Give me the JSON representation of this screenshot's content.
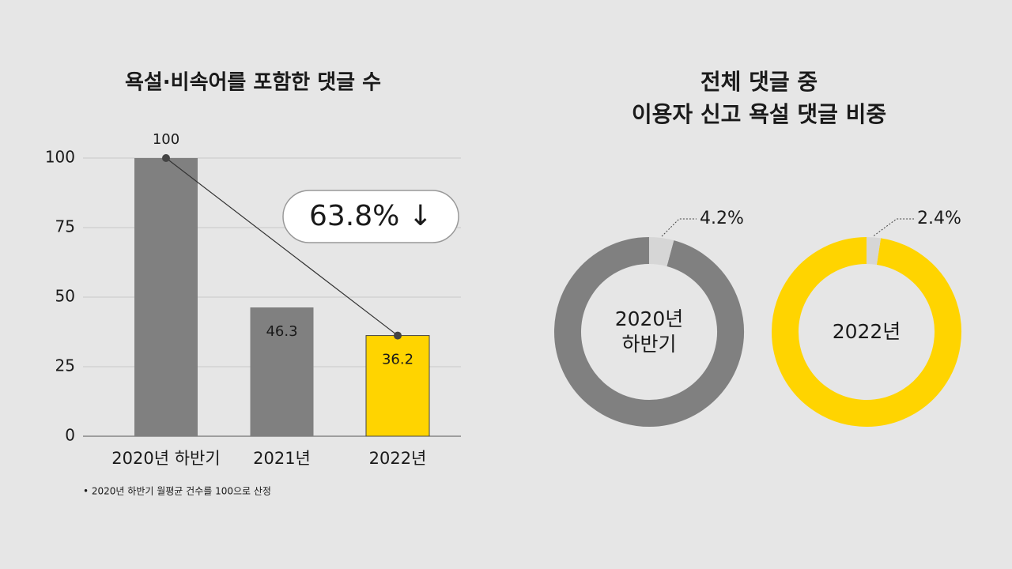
{
  "chart_data": [
    {
      "type": "bar",
      "title": "욕설·비속어를 포함한 댓글 수",
      "categories": [
        "2020년 하반기",
        "2021년",
        "2022년"
      ],
      "values": [
        100,
        46.3,
        36.2
      ],
      "colors": [
        "#808080",
        "#808080",
        "#ffd400"
      ],
      "ylim": [
        0,
        100
      ],
      "yticks": [
        0,
        25,
        50,
        75,
        100
      ],
      "grid": true,
      "annotation": "63.8% ↓",
      "note": "• 2020년 하반기 월평균 건수를 100으로 산정"
    },
    {
      "type": "donut",
      "title": [
        "전체 댓글 중",
        "이용자 신고 욕설 댓글 비중"
      ],
      "slice_color": "#d6d6d6",
      "series": [
        {
          "name": "2020년 하반기",
          "color": "#808080",
          "values": [
            4.2
          ],
          "value_labels": [
            "4.2%"
          ]
        },
        {
          "name": "2022년",
          "color": "#ffd400",
          "values": [
            2.4
          ],
          "value_labels": [
            "2.4%"
          ]
        }
      ]
    }
  ]
}
